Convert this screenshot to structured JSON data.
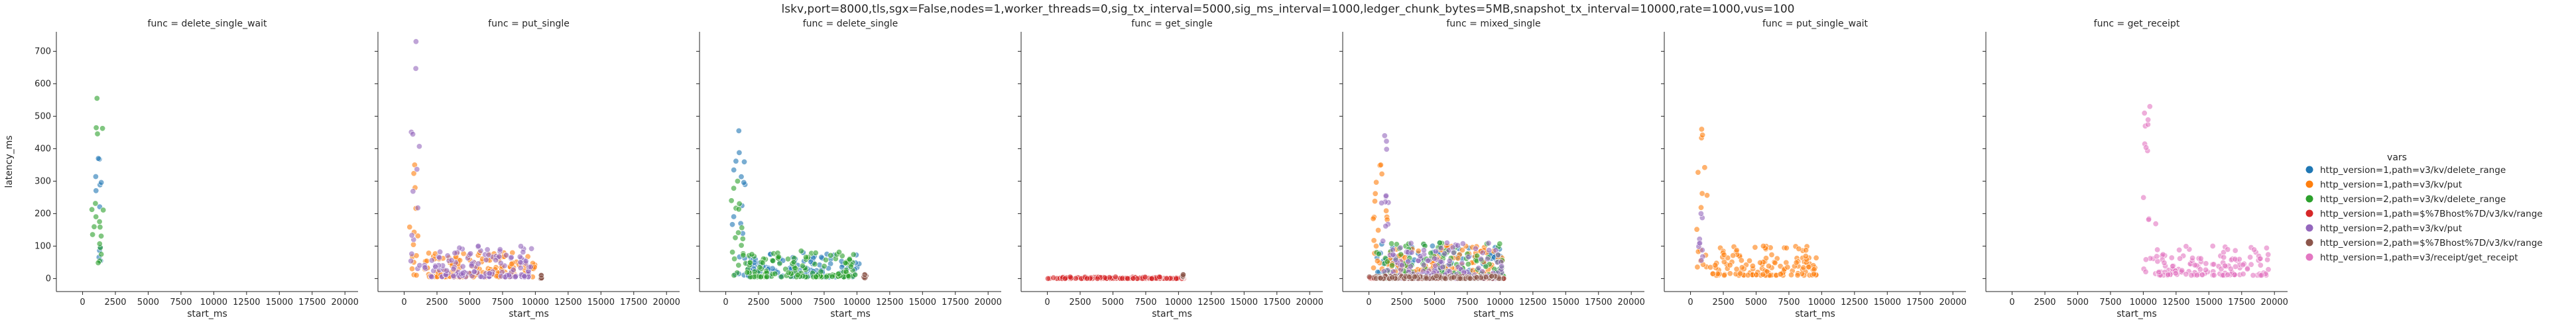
{
  "figure_title": "lskv,port=8000,tls,sgx=False,nodes=1,worker_threads=0,sig_tx_interval=5000,sig_ms_interval=1000,ledger_chunk_bytes=5MB,snapshot_tx_interval=10000,rate=1000,vus=100",
  "legend": {
    "title": "vars",
    "entries": [
      {
        "label": "http_version=1,path=v3/kv/delete_range",
        "color": "#1f77b4"
      },
      {
        "label": "http_version=1,path=v3/kv/put",
        "color": "#ff7f0e"
      },
      {
        "label": "http_version=2,path=v3/kv/delete_range",
        "color": "#2ca02c"
      },
      {
        "label": "http_version=1,path=$%7Bhost%7D/v3/kv/range",
        "color": "#d62728"
      },
      {
        "label": "http_version=2,path=v3/kv/put",
        "color": "#9467bd"
      },
      {
        "label": "http_version=2,path=$%7Bhost%7D/v3/kv/range",
        "color": "#8c564b"
      },
      {
        "label": "http_version=1,path=v3/receipt/get_receipt",
        "color": "#e377c2"
      }
    ]
  },
  "chart_data": {
    "type": "scatter",
    "xlabel": "start_ms",
    "ylabel": "latency_ms",
    "xlim": [
      -2000,
      21000
    ],
    "ylim": [
      -40,
      760
    ],
    "xticks": [
      "0",
      "2500",
      "5000",
      "7500",
      "10000",
      "12500",
      "15000",
      "17500",
      "20000"
    ],
    "xtick_values": [
      0,
      2500,
      5000,
      7500,
      10000,
      12500,
      15000,
      17500,
      20000
    ],
    "yticks": [
      "0",
      "100",
      "200",
      "300",
      "400",
      "500",
      "600",
      "700"
    ],
    "ytick_values": [
      0,
      100,
      200,
      300,
      400,
      500,
      600,
      700
    ],
    "grid": false,
    "legend_position": "right",
    "panels": [
      {
        "title": "func = delete_single_wait",
        "series": [
          {
            "legend_index": 0,
            "bursts": [
              {
                "start": 900,
                "end": 1500,
                "peak": 370,
                "base": 20
              }
            ]
          },
          {
            "legend_index": 2,
            "bursts": [
              {
                "start": 600,
                "end": 1600,
                "peak": 555,
                "base": 30
              }
            ]
          }
        ]
      },
      {
        "title": "func = put_single",
        "series": [
          {
            "legend_index": 1,
            "bursts": [
              {
                "start": 400,
                "end": 1200,
                "peak": 350,
                "base": 10
              },
              {
                "start": 1500,
                "end": 10000,
                "peak": 80,
                "base": 5
              }
            ]
          },
          {
            "legend_index": 4,
            "bursts": [
              {
                "start": 500,
                "end": 1300,
                "peak": 730,
                "base": 10
              },
              {
                "start": 1500,
                "end": 9800,
                "peak": 100,
                "base": 5
              }
            ]
          },
          {
            "legend_index": 5,
            "bursts": [
              {
                "start": 10400,
                "end": 10500,
                "peak": 10,
                "base": 0
              }
            ]
          }
        ]
      },
      {
        "title": "func = delete_single",
        "series": [
          {
            "legend_index": 0,
            "bursts": [
              {
                "start": 500,
                "end": 1500,
                "peak": 455,
                "base": 10
              },
              {
                "start": 1600,
                "end": 10200,
                "peak": 80,
                "base": 5
              }
            ]
          },
          {
            "legend_index": 2,
            "bursts": [
              {
                "start": 400,
                "end": 1400,
                "peak": 300,
                "base": 10
              },
              {
                "start": 1500,
                "end": 10000,
                "peak": 85,
                "base": 5
              }
            ]
          },
          {
            "legend_index": 5,
            "bursts": [
              {
                "start": 10500,
                "end": 10700,
                "peak": 12,
                "base": 0
              }
            ]
          }
        ]
      },
      {
        "title": "func = get_single",
        "series": [
          {
            "legend_index": 3,
            "bursts": [
              {
                "start": 0,
                "end": 10400,
                "peak": 5,
                "base": 0
              }
            ]
          },
          {
            "legend_index": 5,
            "bursts": [
              {
                "start": 10300,
                "end": 10400,
                "peak": 12,
                "base": 5
              }
            ]
          }
        ]
      },
      {
        "title": "func = mixed_single",
        "series": [
          {
            "legend_index": 0,
            "bursts": [
              {
                "start": 500,
                "end": 10300,
                "peak": 110,
                "base": 0
              }
            ]
          },
          {
            "legend_index": 1,
            "bursts": [
              {
                "start": 300,
                "end": 1500,
                "peak": 350,
                "base": 0
              },
              {
                "start": 1500,
                "end": 10300,
                "peak": 100,
                "base": 0
              }
            ]
          },
          {
            "legend_index": 2,
            "bursts": [
              {
                "start": 500,
                "end": 10300,
                "peak": 110,
                "base": 0
              }
            ]
          },
          {
            "legend_index": 3,
            "bursts": [
              {
                "start": 0,
                "end": 10300,
                "peak": 5,
                "base": 0
              }
            ]
          },
          {
            "legend_index": 4,
            "bursts": [
              {
                "start": 800,
                "end": 1600,
                "peak": 440,
                "base": 0
              },
              {
                "start": 1600,
                "end": 10300,
                "peak": 110,
                "base": 0
              }
            ]
          },
          {
            "legend_index": 5,
            "bursts": [
              {
                "start": 0,
                "end": 10300,
                "peak": 8,
                "base": 0
              }
            ]
          }
        ]
      },
      {
        "title": "func = put_single_wait",
        "series": [
          {
            "legend_index": 1,
            "bursts": [
              {
                "start": 400,
                "end": 1300,
                "peak": 460,
                "base": 10
              },
              {
                "start": 1500,
                "end": 9600,
                "peak": 100,
                "base": 10
              }
            ]
          },
          {
            "legend_index": 4,
            "bursts": [
              {
                "start": 600,
                "end": 1000,
                "peak": 200,
                "base": 20
              }
            ]
          }
        ]
      },
      {
        "title": "func = get_receipt",
        "series": [
          {
            "legend_index": 6,
            "bursts": [
              {
                "start": 10000,
                "end": 11000,
                "peak": 530,
                "base": 10
              },
              {
                "start": 11000,
                "end": 19600,
                "peak": 100,
                "base": 10
              }
            ]
          }
        ]
      }
    ]
  }
}
